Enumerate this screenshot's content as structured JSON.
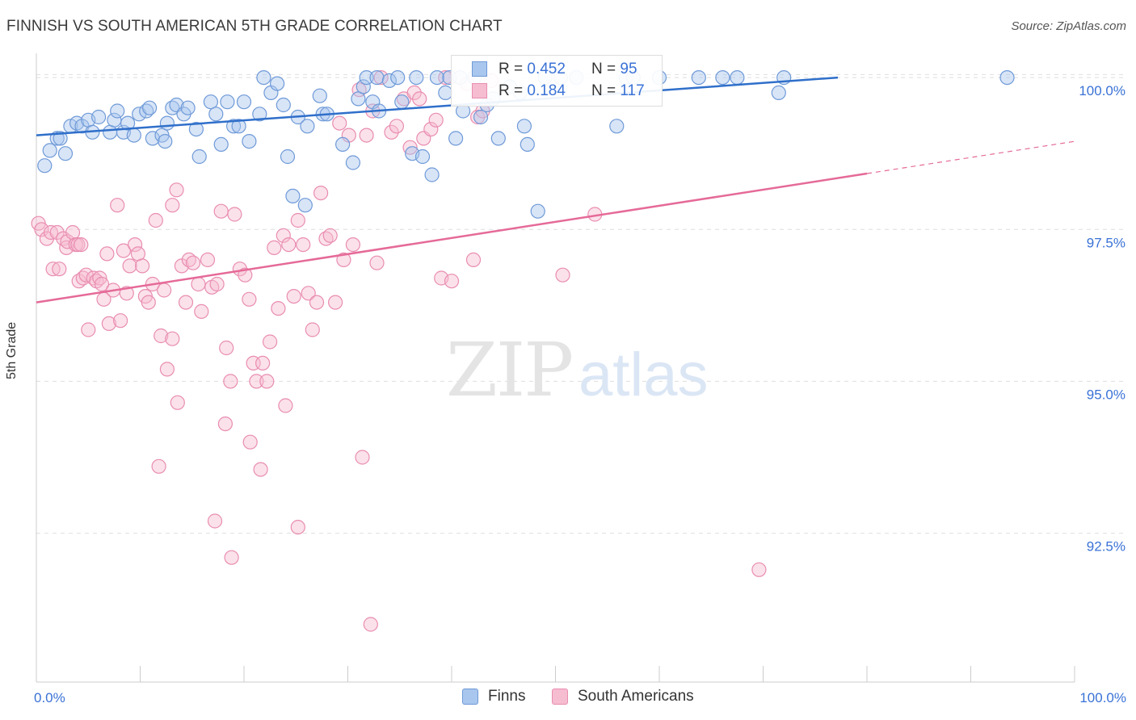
{
  "header": {
    "title": "FINNISH VS SOUTH AMERICAN 5TH GRADE CORRELATION CHART",
    "source": "Source: ZipAtlas.com"
  },
  "watermark": {
    "zip": "ZIP",
    "atlas": "atlas"
  },
  "legend": {
    "rows": [
      {
        "r_label": "R = ",
        "r_value": "0.452",
        "n_label": "N = ",
        "n_value": "95"
      },
      {
        "r_label": "R = ",
        "r_value": "0.184",
        "n_label": "N = ",
        "n_value": "117"
      }
    ],
    "bottom": [
      "Finns",
      "South Americans"
    ]
  },
  "colors": {
    "finns_fill": "#a9c6ee",
    "finns_stroke": "#6f9ad8",
    "finns_line": "#2f6fca",
    "sa_fill": "#f6bcd0",
    "sa_stroke": "#e98db0",
    "sa_line": "#e56a98",
    "tick_text": "#3a72d6",
    "grid": "#dedede"
  },
  "chart_data": {
    "type": "scatter",
    "title": "FINNISH VS SOUTH AMERICAN 5TH GRADE CORRELATION CHART",
    "xlabel": "",
    "ylabel": "5th Grade",
    "xlim": [
      0,
      100
    ],
    "ylim": [
      90.05,
      100.4
    ],
    "x_tick_labels": [
      "0.0%",
      "100.0%"
    ],
    "y_ticks": [
      92.5,
      95.0,
      97.5,
      100.0
    ],
    "y_tick_labels": [
      "92.5%",
      "95.0%",
      "97.5%",
      "100.0%"
    ],
    "grid": true,
    "series": [
      {
        "name": "Finns",
        "r": 0.452,
        "n": 95,
        "trend": {
          "x": [
            0,
            77.2
          ],
          "y": [
            99.05,
            100.0
          ]
        },
        "points": [
          [
            0.8,
            98.55
          ],
          [
            1.3,
            98.8
          ],
          [
            2.0,
            99.0
          ],
          [
            2.3,
            99.0
          ],
          [
            2.8,
            98.75
          ],
          [
            3.3,
            99.2
          ],
          [
            3.9,
            99.25
          ],
          [
            4.4,
            99.2
          ],
          [
            5.0,
            99.3
          ],
          [
            5.4,
            99.1
          ],
          [
            6.0,
            99.35
          ],
          [
            7.1,
            99.1
          ],
          [
            7.5,
            99.3
          ],
          [
            7.8,
            99.45
          ],
          [
            8.4,
            99.1
          ],
          [
            8.8,
            99.25
          ],
          [
            9.4,
            99.05
          ],
          [
            9.9,
            99.4
          ],
          [
            10.6,
            99.45
          ],
          [
            10.9,
            99.5
          ],
          [
            11.2,
            99.0
          ],
          [
            12.1,
            99.05
          ],
          [
            12.4,
            98.95
          ],
          [
            12.6,
            99.25
          ],
          [
            13.1,
            99.5
          ],
          [
            13.5,
            99.55
          ],
          [
            14.2,
            99.4
          ],
          [
            14.6,
            99.5
          ],
          [
            15.4,
            99.15
          ],
          [
            15.7,
            98.7
          ],
          [
            16.8,
            99.6
          ],
          [
            17.3,
            99.4
          ],
          [
            17.8,
            98.9
          ],
          [
            18.4,
            99.6
          ],
          [
            19.0,
            99.2
          ],
          [
            19.5,
            99.2
          ],
          [
            20.0,
            99.6
          ],
          [
            20.5,
            98.95
          ],
          [
            21.5,
            99.4
          ],
          [
            21.9,
            100.0
          ],
          [
            22.6,
            99.75
          ],
          [
            23.2,
            99.9
          ],
          [
            23.8,
            99.55
          ],
          [
            24.2,
            98.7
          ],
          [
            24.7,
            98.05
          ],
          [
            25.2,
            99.35
          ],
          [
            25.9,
            97.9
          ],
          [
            26.1,
            99.2
          ],
          [
            27.3,
            99.7
          ],
          [
            27.6,
            99.4
          ],
          [
            28.0,
            99.4
          ],
          [
            29.5,
            98.9
          ],
          [
            30.5,
            98.6
          ],
          [
            31.0,
            99.65
          ],
          [
            31.5,
            99.85
          ],
          [
            31.8,
            100.0
          ],
          [
            32.4,
            99.6
          ],
          [
            32.8,
            100.0
          ],
          [
            33.0,
            99.45
          ],
          [
            34.0,
            99.95
          ],
          [
            34.8,
            100.0
          ],
          [
            35.2,
            99.6
          ],
          [
            36.2,
            98.75
          ],
          [
            36.6,
            100.0
          ],
          [
            37.2,
            98.7
          ],
          [
            38.1,
            98.4
          ],
          [
            38.6,
            100.0
          ],
          [
            39.4,
            99.75
          ],
          [
            39.8,
            100.0
          ],
          [
            40.4,
            99.0
          ],
          [
            40.8,
            100.0
          ],
          [
            41.1,
            99.45
          ],
          [
            42.2,
            100.0
          ],
          [
            42.8,
            99.35
          ],
          [
            43.4,
            99.55
          ],
          [
            44.0,
            99.65
          ],
          [
            44.5,
            99.0
          ],
          [
            45.6,
            99.85
          ],
          [
            46.6,
            99.75
          ],
          [
            47.0,
            99.2
          ],
          [
            47.3,
            98.9
          ],
          [
            48.3,
            97.8
          ],
          [
            49.0,
            100.0
          ],
          [
            50.5,
            100.0
          ],
          [
            52.0,
            100.0
          ],
          [
            55.9,
            99.2
          ],
          [
            56.8,
            100.0
          ],
          [
            57.5,
            100.0
          ],
          [
            60.0,
            100.0
          ],
          [
            63.8,
            100.0
          ],
          [
            66.1,
            100.0
          ],
          [
            67.5,
            100.0
          ],
          [
            72.0,
            100.0
          ],
          [
            93.5,
            100.0
          ],
          [
            71.5,
            99.75
          ]
        ]
      },
      {
        "name": "South Americans",
        "r": 0.184,
        "n": 117,
        "trend": {
          "x": [
            0,
            100
          ],
          "y": [
            96.3,
            98.95
          ]
        },
        "trend_solid_until_x": 80.0,
        "points": [
          [
            0.2,
            97.6
          ],
          [
            0.5,
            97.5
          ],
          [
            1.0,
            97.35
          ],
          [
            1.4,
            97.45
          ],
          [
            1.6,
            96.85
          ],
          [
            2.0,
            97.45
          ],
          [
            2.2,
            96.85
          ],
          [
            2.6,
            97.35
          ],
          [
            2.9,
            97.2
          ],
          [
            3.0,
            97.3
          ],
          [
            3.5,
            97.45
          ],
          [
            3.8,
            97.25
          ],
          [
            4.0,
            97.25
          ],
          [
            4.1,
            96.65
          ],
          [
            4.3,
            97.25
          ],
          [
            4.5,
            96.7
          ],
          [
            4.8,
            96.75
          ],
          [
            5.0,
            95.85
          ],
          [
            5.5,
            96.7
          ],
          [
            5.8,
            96.65
          ],
          [
            6.1,
            96.7
          ],
          [
            6.3,
            96.6
          ],
          [
            6.5,
            96.35
          ],
          [
            6.8,
            97.1
          ],
          [
            7.0,
            95.95
          ],
          [
            7.4,
            96.5
          ],
          [
            7.8,
            97.9
          ],
          [
            8.1,
            96.0
          ],
          [
            8.4,
            97.15
          ],
          [
            8.7,
            96.45
          ],
          [
            9.0,
            96.9
          ],
          [
            9.5,
            97.25
          ],
          [
            9.8,
            97.1
          ],
          [
            10.2,
            96.9
          ],
          [
            10.5,
            96.4
          ],
          [
            10.8,
            96.3
          ],
          [
            11.2,
            96.6
          ],
          [
            11.5,
            97.65
          ],
          [
            12.0,
            95.75
          ],
          [
            12.3,
            96.5
          ],
          [
            12.6,
            95.2
          ],
          [
            13.1,
            97.9
          ],
          [
            13.5,
            98.15
          ],
          [
            14.0,
            96.9
          ],
          [
            14.4,
            96.3
          ],
          [
            14.7,
            97.0
          ],
          [
            15.1,
            96.95
          ],
          [
            15.6,
            96.6
          ],
          [
            15.9,
            96.15
          ],
          [
            16.5,
            97.0
          ],
          [
            16.9,
            96.55
          ],
          [
            17.4,
            96.6
          ],
          [
            17.8,
            97.8
          ],
          [
            18.3,
            95.55
          ],
          [
            18.7,
            95.0
          ],
          [
            19.1,
            97.75
          ],
          [
            19.6,
            96.85
          ],
          [
            20.1,
            96.75
          ],
          [
            20.5,
            96.35
          ],
          [
            20.9,
            95.3
          ],
          [
            21.2,
            95.0
          ],
          [
            21.6,
            93.55
          ],
          [
            22.2,
            95.0
          ],
          [
            22.5,
            95.65
          ],
          [
            22.9,
            97.2
          ],
          [
            23.3,
            96.2
          ],
          [
            23.8,
            97.4
          ],
          [
            24.3,
            97.25
          ],
          [
            24.8,
            96.4
          ],
          [
            25.2,
            97.65
          ],
          [
            25.7,
            97.25
          ],
          [
            26.2,
            96.45
          ],
          [
            26.6,
            95.85
          ],
          [
            27.0,
            96.3
          ],
          [
            27.4,
            98.1
          ],
          [
            27.9,
            97.35
          ],
          [
            28.3,
            97.4
          ],
          [
            28.8,
            96.3
          ],
          [
            29.2,
            99.25
          ],
          [
            29.6,
            97.0
          ],
          [
            30.1,
            99.05
          ],
          [
            30.5,
            97.25
          ],
          [
            31.1,
            99.8
          ],
          [
            31.4,
            93.75
          ],
          [
            31.8,
            99.05
          ],
          [
            32.4,
            99.45
          ],
          [
            32.8,
            96.95
          ],
          [
            33.2,
            100.0
          ],
          [
            34.2,
            99.1
          ],
          [
            34.7,
            99.2
          ],
          [
            35.4,
            99.65
          ],
          [
            36.0,
            98.85
          ],
          [
            36.4,
            99.75
          ],
          [
            36.9,
            99.65
          ],
          [
            37.3,
            99.0
          ],
          [
            38.0,
            99.15
          ],
          [
            38.5,
            99.3
          ],
          [
            39.0,
            96.7
          ],
          [
            39.4,
            100.0
          ],
          [
            40.0,
            96.65
          ],
          [
            41.5,
            99.9
          ],
          [
            42.1,
            97.0
          ],
          [
            42.5,
            99.35
          ],
          [
            43.0,
            99.45
          ],
          [
            43.8,
            99.95
          ],
          [
            53.8,
            97.75
          ],
          [
            50.7,
            96.75
          ],
          [
            69.6,
            91.9
          ],
          [
            32.2,
            91.0
          ],
          [
            25.2,
            92.6
          ],
          [
            18.8,
            92.1
          ],
          [
            17.2,
            92.7
          ],
          [
            18.2,
            94.3
          ],
          [
            13.6,
            94.65
          ],
          [
            13.1,
            95.7
          ],
          [
            11.8,
            93.6
          ],
          [
            20.6,
            94.0
          ],
          [
            21.8,
            95.3
          ],
          [
            24.0,
            94.6
          ]
        ]
      }
    ]
  }
}
